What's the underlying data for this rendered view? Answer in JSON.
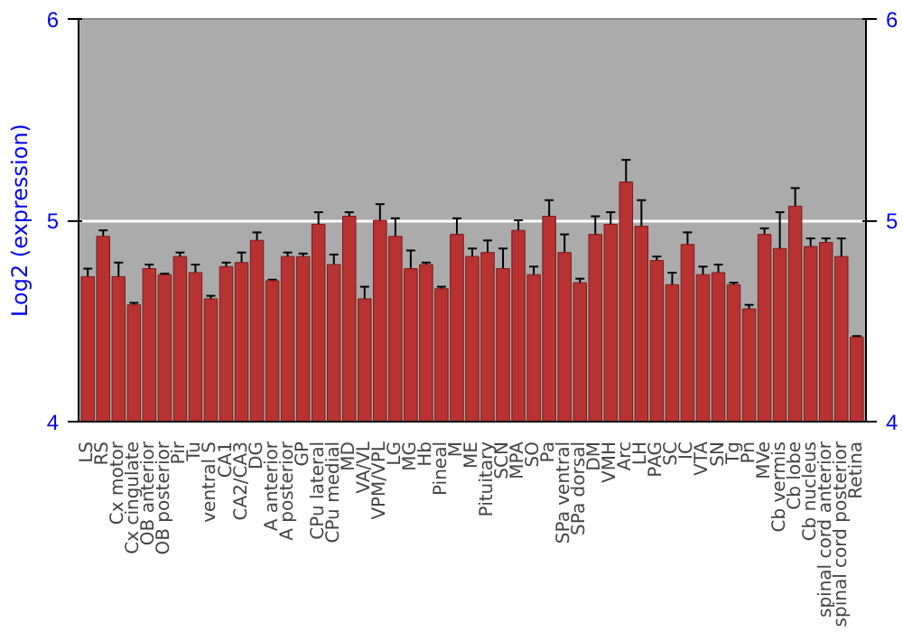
{
  "chart_data": {
    "type": "bar",
    "ylabel": "Log2 (expression)",
    "categories": [
      "LS",
      "RS",
      "Cx motor",
      "Cx cingulate",
      "OB anterior",
      "OB posterior",
      "Pir",
      "Tu",
      "ventral S",
      "CA1",
      "CA2/CA3",
      "DG",
      "A anterior",
      "A posterior",
      "GP",
      "CPu lateral",
      "CPu medial",
      "MD",
      "VA/VL",
      "VPM/VPL",
      "LG",
      "MG",
      "Hb",
      "Pineal",
      "M",
      "ME",
      "Pituitary",
      "SCN",
      "MPA",
      "SO",
      "Pa",
      "SPa ventral",
      "SPa dorsal",
      "DM",
      "VMH",
      "Arc",
      "LH",
      "PAG",
      "SC",
      "IC",
      "VTA",
      "SN",
      "Tg",
      "Pn",
      "MVe",
      "Cb vermis",
      "Cb lobe",
      "Cb nucleus",
      "spinal cord anterior",
      "spinal cord posterior",
      "Retina"
    ],
    "values": [
      4.72,
      4.92,
      4.72,
      4.58,
      4.76,
      4.73,
      4.82,
      4.74,
      4.61,
      4.77,
      4.79,
      4.9,
      4.7,
      4.82,
      4.82,
      4.98,
      4.78,
      5.02,
      4.61,
      5.0,
      4.92,
      4.76,
      4.78,
      4.66,
      4.93,
      4.82,
      4.84,
      4.76,
      4.95,
      4.73,
      5.02,
      4.84,
      4.69,
      4.93,
      4.98,
      5.19,
      4.97,
      4.8,
      4.68,
      4.88,
      4.73,
      4.74,
      4.68,
      4.56,
      4.93,
      4.86,
      5.07,
      4.87,
      4.89,
      4.82,
      4.42
    ],
    "errors": [
      0.04,
      0.03,
      0.07,
      0.01,
      0.02,
      0.005,
      0.02,
      0.04,
      0.015,
      0.02,
      0.05,
      0.04,
      0.005,
      0.02,
      0.015,
      0.06,
      0.05,
      0.02,
      0.06,
      0.08,
      0.09,
      0.09,
      0.01,
      0.01,
      0.08,
      0.04,
      0.06,
      0.1,
      0.05,
      0.04,
      0.08,
      0.09,
      0.02,
      0.09,
      0.06,
      0.11,
      0.13,
      0.02,
      0.06,
      0.06,
      0.04,
      0.04,
      0.01,
      0.02,
      0.03,
      0.18,
      0.09,
      0.04,
      0.02,
      0.09,
      0.005
    ],
    "color": "#b83232",
    "ylim": [
      4,
      6
    ],
    "yticks": [
      4,
      5,
      6
    ],
    "y2lim": [
      4,
      6
    ],
    "y2ticks": [
      4,
      5,
      6
    ],
    "grid": "y"
  }
}
